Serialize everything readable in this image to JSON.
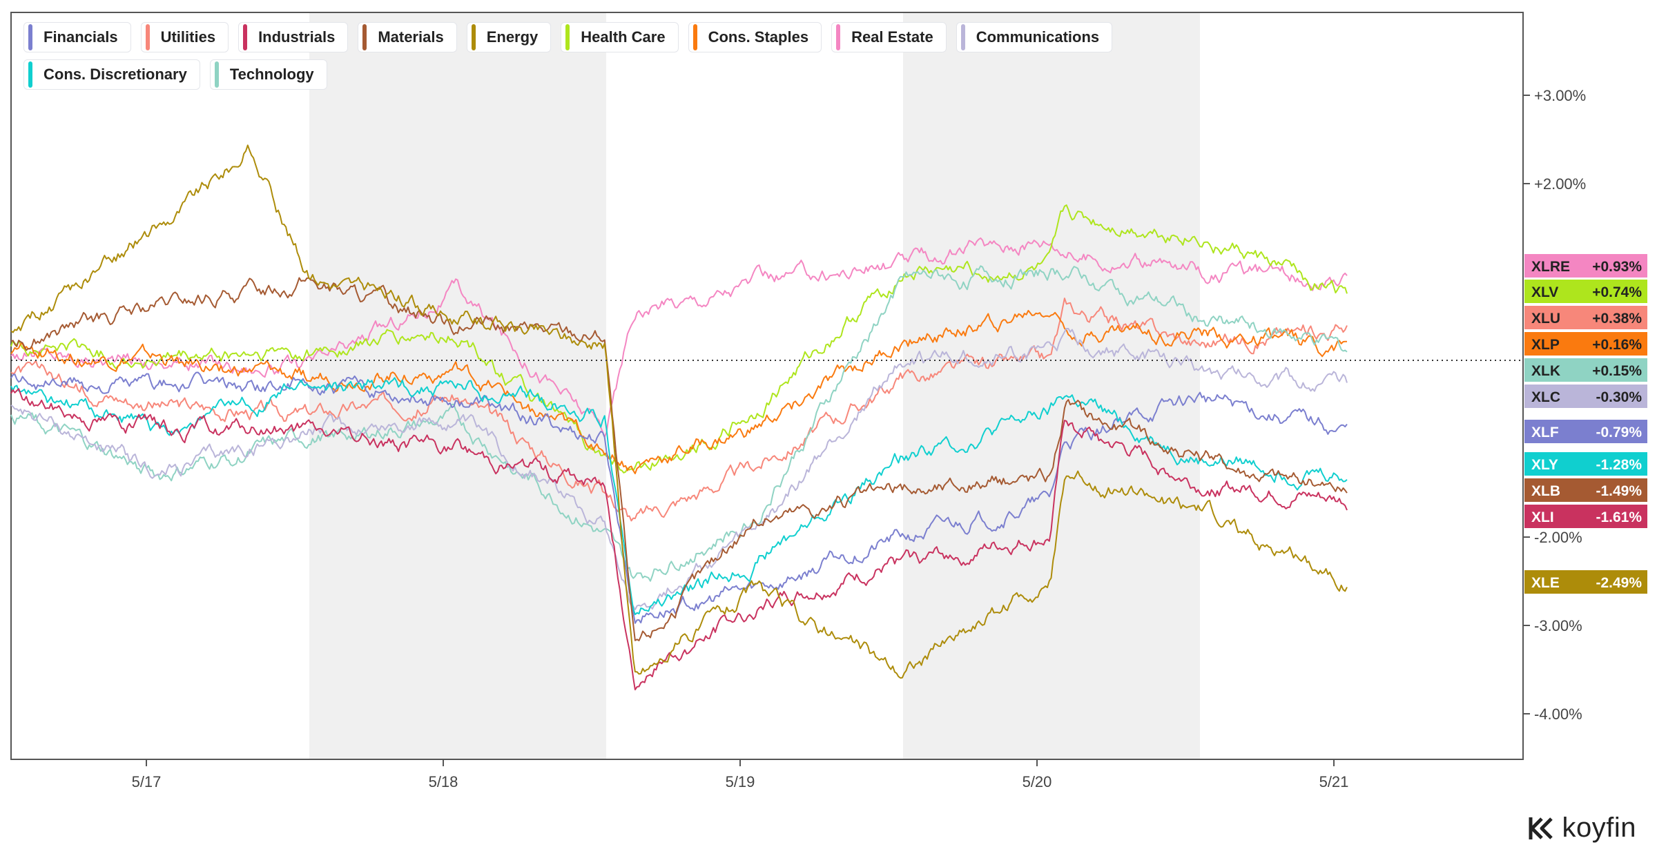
{
  "brand": {
    "name": "koyfin",
    "logo_icon": "koyfin-logo-icon"
  },
  "legend": [
    {
      "name": "Financials",
      "color": "#7b7fcf"
    },
    {
      "name": "Utilities",
      "color": "#f7877a"
    },
    {
      "name": "Industrials",
      "color": "#c9325f"
    },
    {
      "name": "Materials",
      "color": "#a55a32"
    },
    {
      "name": "Energy",
      "color": "#ad8c0a"
    },
    {
      "name": "Health Care",
      "color": "#aee51d"
    },
    {
      "name": "Cons. Staples",
      "color": "#fa7a0f"
    },
    {
      "name": "Real Estate",
      "color": "#f486c2"
    },
    {
      "name": "Communications",
      "color": "#bab5d9"
    },
    {
      "name": "Cons. Discretionary",
      "color": "#10cfcf"
    },
    {
      "name": "Technology",
      "color": "#8fd3c3"
    }
  ],
  "chart_data": {
    "type": "line",
    "x_labels": [
      "5/17",
      "5/18",
      "5/19",
      "5/20",
      "5/21"
    ],
    "y_ticks": [
      "+3.00%",
      "+2.00%",
      "-2.00%",
      "-3.00%",
      "-4.00%"
    ],
    "ylim": [
      -4.5,
      4.0
    ],
    "zero_line": true,
    "shaded_days": [
      "5/18",
      "5/20"
    ],
    "series": [
      {
        "ticker": "XLRE",
        "name": "Real Estate",
        "color": "#f486c2",
        "last_label": "+0.93%",
        "text_color": "#222",
        "x": [
          0,
          0.5,
          1,
          1.5,
          2,
          2.1,
          2.5,
          3,
          3.5,
          3.6,
          4,
          4.5
        ],
        "y": [
          0.1,
          0.0,
          -0.1,
          0.8,
          -0.8,
          0.5,
          0.9,
          1.1,
          1.4,
          1.2,
          1.0,
          0.93
        ]
      },
      {
        "ticker": "XLV",
        "name": "Health Care",
        "color": "#aee51d",
        "last_label": "+0.74%",
        "text_color": "#222",
        "x": [
          0,
          0.5,
          1,
          1.5,
          2,
          2.1,
          2.5,
          3,
          3.5,
          3.55,
          4,
          4.5
        ],
        "y": [
          0.2,
          0.0,
          0.1,
          0.3,
          -1.1,
          -1.3,
          -0.6,
          1.0,
          1.0,
          1.6,
          1.4,
          0.74
        ]
      },
      {
        "ticker": "XLU",
        "name": "Utilities",
        "color": "#f7877a",
        "last_label": "+0.38%",
        "text_color": "#222",
        "x": [
          0,
          0.5,
          1,
          1.5,
          2,
          2.1,
          2.5,
          3,
          3.5,
          3.55,
          4,
          4.5
        ],
        "y": [
          -0.1,
          -0.5,
          -0.6,
          -0.4,
          -1.5,
          -1.8,
          -1.2,
          -0.2,
          0.0,
          0.6,
          0.2,
          0.38
        ]
      },
      {
        "ticker": "XLP",
        "name": "Cons. Staples",
        "color": "#fa7a0f",
        "last_label": "+0.16%",
        "text_color": "#222",
        "x": [
          0,
          0.5,
          1,
          1.5,
          2,
          2.1,
          2.5,
          3,
          3.5,
          3.55,
          4,
          4.5
        ],
        "y": [
          0.1,
          0.0,
          -0.2,
          -0.1,
          -1.0,
          -1.2,
          -0.8,
          0.2,
          0.6,
          0.4,
          0.3,
          0.16
        ]
      },
      {
        "ticker": "XLK",
        "name": "Technology",
        "color": "#8fd3c3",
        "last_label": "+0.15%",
        "text_color": "#222",
        "x": [
          0,
          0.5,
          1,
          1.5,
          2,
          2.1,
          2.5,
          3,
          3.5,
          3.55,
          4,
          4.5
        ],
        "y": [
          -0.6,
          -1.3,
          -0.9,
          -0.7,
          -2.0,
          -2.5,
          -1.8,
          0.9,
          1.0,
          1.0,
          0.5,
          0.15
        ]
      },
      {
        "ticker": "XLC",
        "name": "Communications",
        "color": "#bab5d9",
        "last_label": "-0.30%",
        "text_color": "#222",
        "x": [
          0,
          0.5,
          1,
          1.5,
          2,
          2.1,
          2.5,
          3,
          3.5,
          3.55,
          4,
          4.5
        ],
        "y": [
          -0.5,
          -1.3,
          -0.8,
          -0.7,
          -1.8,
          -2.8,
          -2.0,
          0.0,
          0.1,
          0.2,
          -0.1,
          -0.3
        ]
      },
      {
        "ticker": "XLF",
        "name": "Financials",
        "color": "#7b7fcf",
        "last_label": "-0.79%",
        "text_color": "#ffffff",
        "x": [
          0,
          0.5,
          1,
          1.5,
          2,
          2.1,
          2.5,
          3,
          3.5,
          3.55,
          4,
          4.5
        ],
        "y": [
          -0.2,
          -0.3,
          -0.3,
          -0.4,
          -0.9,
          -2.9,
          -2.6,
          -2.0,
          -1.6,
          -0.9,
          -0.4,
          -0.79
        ]
      },
      {
        "ticker": "XLY",
        "name": "Cons. Discretionary",
        "color": "#10cfcf",
        "last_label": "-1.28%",
        "text_color": "#ffffff",
        "x": [
          0,
          0.5,
          1,
          1.5,
          2,
          2.1,
          2.5,
          3,
          3.5,
          3.55,
          4,
          4.5
        ],
        "y": [
          -0.3,
          -0.8,
          -0.3,
          -0.3,
          -0.6,
          -2.9,
          -2.3,
          -1.1,
          -0.6,
          -0.4,
          -1.1,
          -1.28
        ]
      },
      {
        "ticker": "XLB",
        "name": "Materials",
        "color": "#a55a32",
        "last_label": "-1.49%",
        "text_color": "#ffffff",
        "x": [
          0,
          0.5,
          1,
          1.5,
          2,
          2.1,
          2.5,
          3,
          3.5,
          3.55,
          4,
          4.5
        ],
        "y": [
          0.2,
          0.6,
          0.9,
          0.4,
          0.3,
          -3.3,
          -1.8,
          -1.5,
          -1.3,
          -0.5,
          -1.1,
          -1.49
        ]
      },
      {
        "ticker": "XLI",
        "name": "Industrials",
        "color": "#c9325f",
        "last_label": "-1.61%",
        "text_color": "#ffffff",
        "x": [
          0,
          0.5,
          1,
          1.5,
          2,
          2.1,
          2.5,
          3,
          3.5,
          3.55,
          4,
          4.5
        ],
        "y": [
          -0.4,
          -0.8,
          -0.8,
          -1.0,
          -1.4,
          -3.6,
          -2.8,
          -2.3,
          -2.0,
          -0.7,
          -1.4,
          -1.61
        ]
      },
      {
        "ticker": "XLE",
        "name": "Energy",
        "color": "#ad8c0a",
        "last_label": "-2.49%",
        "text_color": "#ffffff",
        "x": [
          0,
          0.5,
          0.8,
          1,
          1.5,
          2,
          2.1,
          2.5,
          3,
          3.5,
          3.55,
          4,
          4.5
        ],
        "y": [
          0.3,
          1.5,
          2.4,
          1.0,
          0.5,
          0.2,
          -3.6,
          -2.6,
          -3.5,
          -2.5,
          -1.3,
          -1.7,
          -2.49
        ]
      }
    ]
  }
}
